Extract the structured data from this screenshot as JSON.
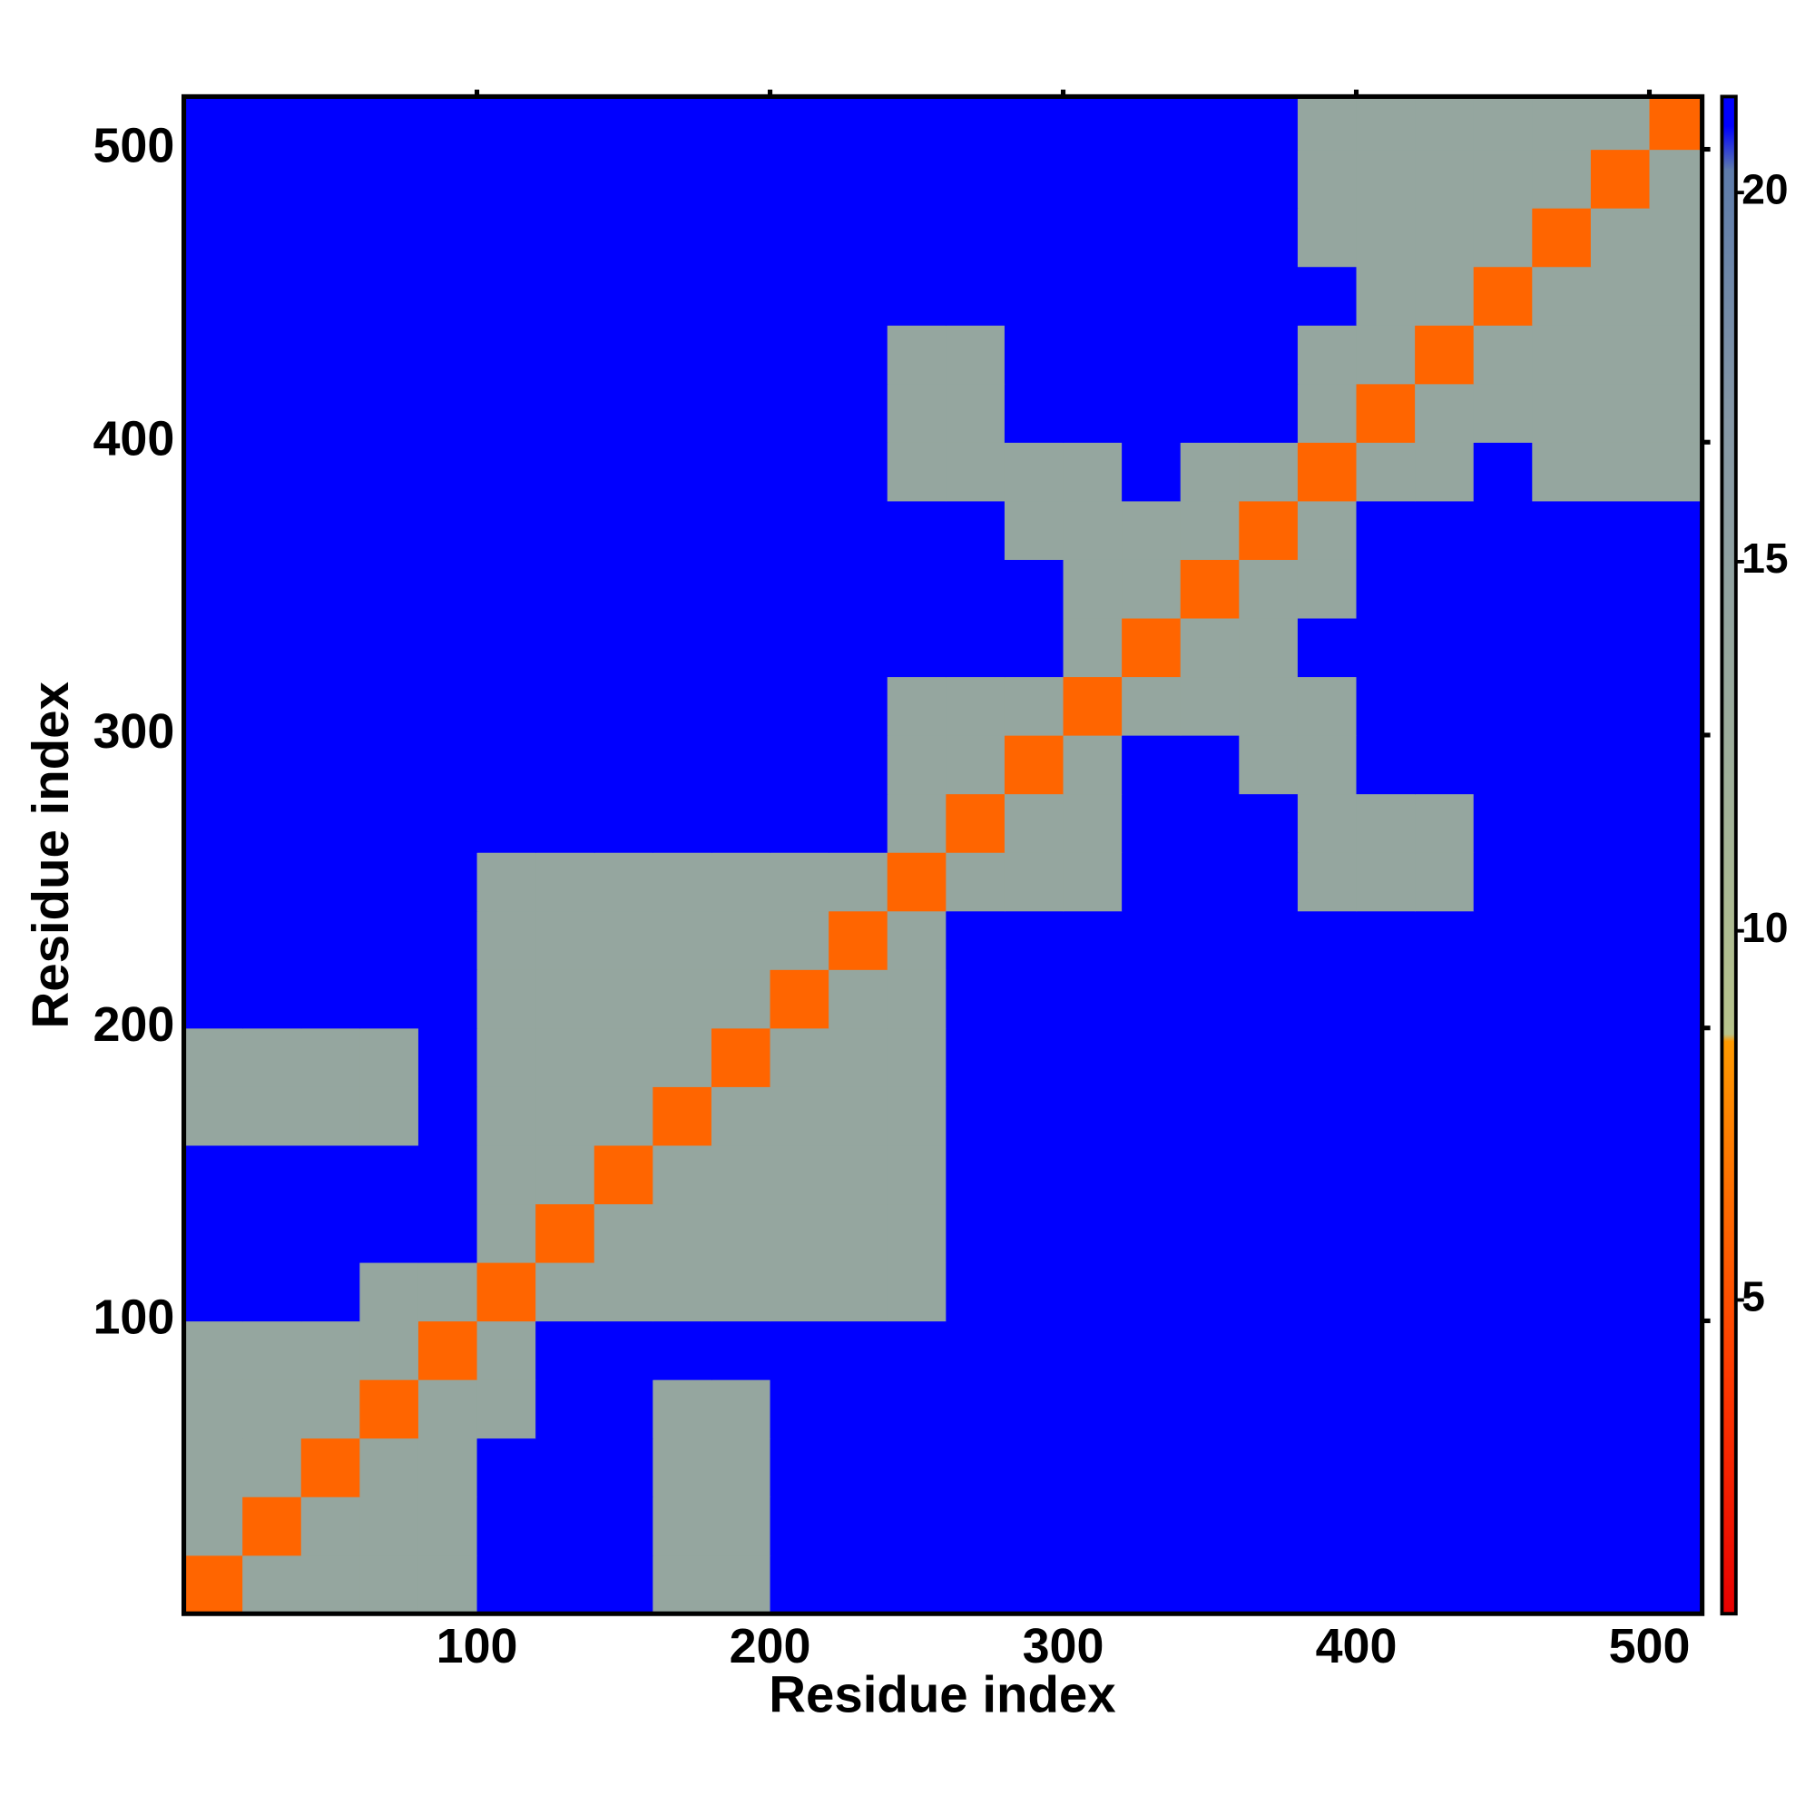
{
  "chart_data": {
    "type": "heatmap",
    "xlabel": "Residue index",
    "ylabel": "Residue index",
    "x_bins": [
      0,
      20,
      40,
      60,
      80,
      100,
      120,
      140,
      160,
      180,
      200,
      220,
      240,
      260,
      280,
      300,
      320,
      340,
      360,
      380,
      400,
      420,
      440,
      460,
      480,
      500,
      518
    ],
    "y_bins": [
      0,
      20,
      40,
      60,
      80,
      100,
      120,
      140,
      160,
      180,
      200,
      220,
      240,
      260,
      280,
      300,
      320,
      340,
      360,
      380,
      400,
      420,
      440,
      460,
      480,
      500,
      518
    ],
    "values": [
      [
        6,
        14,
        14,
        14,
        14,
        21,
        21,
        21,
        14,
        14,
        21,
        21,
        21,
        21,
        21,
        21,
        21,
        21,
        21,
        21,
        21,
        21,
        21,
        21,
        21,
        21
      ],
      [
        14,
        6,
        14,
        14,
        14,
        21,
        21,
        21,
        14,
        14,
        21,
        21,
        21,
        21,
        21,
        21,
        21,
        21,
        21,
        21,
        21,
        21,
        21,
        21,
        21,
        21
      ],
      [
        14,
        14,
        6,
        14,
        14,
        21,
        21,
        21,
        14,
        14,
        21,
        21,
        21,
        21,
        21,
        21,
        21,
        21,
        21,
        21,
        21,
        21,
        21,
        21,
        21,
        21
      ],
      [
        14,
        14,
        14,
        6,
        14,
        14,
        21,
        21,
        14,
        14,
        21,
        21,
        21,
        21,
        21,
        21,
        21,
        21,
        21,
        21,
        21,
        21,
        21,
        21,
        21,
        21
      ],
      [
        14,
        14,
        14,
        14,
        6,
        14,
        21,
        21,
        21,
        21,
        21,
        21,
        21,
        21,
        21,
        21,
        21,
        21,
        21,
        21,
        21,
        21,
        21,
        21,
        21,
        21
      ],
      [
        21,
        21,
        21,
        14,
        14,
        6,
        14,
        14,
        14,
        14,
        14,
        14,
        14,
        21,
        21,
        21,
        21,
        21,
        21,
        21,
        21,
        21,
        21,
        21,
        21,
        21
      ],
      [
        21,
        21,
        21,
        21,
        21,
        14,
        6,
        14,
        14,
        14,
        14,
        14,
        14,
        21,
        21,
        21,
        21,
        21,
        21,
        21,
        21,
        21,
        21,
        21,
        21,
        21
      ],
      [
        21,
        21,
        21,
        21,
        21,
        14,
        14,
        6,
        14,
        14,
        14,
        14,
        14,
        21,
        21,
        21,
        21,
        21,
        21,
        21,
        21,
        21,
        21,
        21,
        21,
        21
      ],
      [
        14,
        14,
        14,
        14,
        21,
        14,
        14,
        14,
        6,
        14,
        14,
        14,
        14,
        21,
        21,
        21,
        21,
        21,
        21,
        21,
        21,
        21,
        21,
        21,
        21,
        21
      ],
      [
        14,
        14,
        14,
        14,
        21,
        14,
        14,
        14,
        14,
        6,
        14,
        14,
        14,
        21,
        21,
        21,
        21,
        21,
        21,
        21,
        21,
        21,
        21,
        21,
        21,
        21
      ],
      [
        21,
        21,
        21,
        21,
        21,
        14,
        14,
        14,
        14,
        14,
        6,
        14,
        14,
        21,
        21,
        21,
        21,
        21,
        21,
        21,
        21,
        21,
        21,
        21,
        21,
        21
      ],
      [
        21,
        21,
        21,
        21,
        21,
        14,
        14,
        14,
        14,
        14,
        14,
        6,
        14,
        21,
        21,
        21,
        21,
        21,
        21,
        21,
        21,
        21,
        21,
        21,
        21,
        21
      ],
      [
        21,
        21,
        21,
        21,
        21,
        14,
        14,
        14,
        14,
        14,
        14,
        14,
        6,
        14,
        14,
        14,
        21,
        21,
        21,
        14,
        14,
        14,
        21,
        21,
        21,
        21
      ],
      [
        21,
        21,
        21,
        21,
        21,
        21,
        21,
        21,
        21,
        21,
        21,
        21,
        14,
        6,
        14,
        14,
        21,
        21,
        21,
        14,
        14,
        14,
        21,
        21,
        21,
        21
      ],
      [
        21,
        21,
        21,
        21,
        21,
        21,
        21,
        21,
        21,
        21,
        21,
        21,
        14,
        14,
        6,
        14,
        21,
        21,
        14,
        14,
        21,
        21,
        21,
        21,
        21,
        21
      ],
      [
        21,
        21,
        21,
        21,
        21,
        21,
        21,
        21,
        21,
        21,
        21,
        21,
        14,
        14,
        14,
        6,
        14,
        14,
        14,
        14,
        21,
        21,
        21,
        21,
        21,
        21
      ],
      [
        21,
        21,
        21,
        21,
        21,
        21,
        21,
        21,
        21,
        21,
        21,
        21,
        21,
        21,
        21,
        14,
        6,
        14,
        14,
        21,
        21,
        21,
        21,
        21,
        21,
        21
      ],
      [
        21,
        21,
        21,
        21,
        21,
        21,
        21,
        21,
        21,
        21,
        21,
        21,
        21,
        21,
        21,
        14,
        14,
        6,
        14,
        14,
        21,
        21,
        21,
        21,
        21,
        21
      ],
      [
        21,
        21,
        21,
        21,
        21,
        21,
        21,
        21,
        21,
        21,
        21,
        21,
        21,
        21,
        14,
        14,
        14,
        14,
        6,
        14,
        21,
        21,
        21,
        21,
        21,
        21
      ],
      [
        21,
        21,
        21,
        21,
        21,
        21,
        21,
        21,
        21,
        21,
        21,
        21,
        14,
        14,
        14,
        14,
        21,
        14,
        14,
        6,
        14,
        14,
        21,
        14,
        14,
        14
      ],
      [
        21,
        21,
        21,
        21,
        21,
        21,
        21,
        21,
        21,
        21,
        21,
        21,
        14,
        14,
        21,
        21,
        21,
        21,
        21,
        14,
        6,
        14,
        14,
        14,
        14,
        14
      ],
      [
        21,
        21,
        21,
        21,
        21,
        21,
        21,
        21,
        21,
        21,
        21,
        21,
        14,
        14,
        21,
        21,
        21,
        21,
        21,
        14,
        14,
        6,
        14,
        14,
        14,
        14
      ],
      [
        21,
        21,
        21,
        21,
        21,
        21,
        21,
        21,
        21,
        21,
        21,
        21,
        21,
        21,
        21,
        21,
        21,
        21,
        21,
        21,
        14,
        14,
        6,
        14,
        14,
        14
      ],
      [
        21,
        21,
        21,
        21,
        21,
        21,
        21,
        21,
        21,
        21,
        21,
        21,
        21,
        21,
        21,
        21,
        21,
        21,
        21,
        14,
        14,
        14,
        14,
        6,
        14,
        14
      ],
      [
        21,
        21,
        21,
        21,
        21,
        21,
        21,
        21,
        21,
        21,
        21,
        21,
        21,
        21,
        21,
        21,
        21,
        21,
        21,
        14,
        14,
        14,
        14,
        14,
        6,
        14
      ],
      [
        21,
        21,
        21,
        21,
        21,
        21,
        21,
        21,
        21,
        21,
        21,
        21,
        21,
        21,
        21,
        21,
        21,
        21,
        21,
        14,
        14,
        14,
        14,
        14,
        14,
        6
      ]
    ],
    "xlim": [
      0,
      518
    ],
    "ylim": [
      0,
      518
    ],
    "xticks": [
      100,
      200,
      300,
      400,
      500
    ],
    "yticks": [
      100,
      200,
      300,
      400,
      500
    ],
    "colorbar": {
      "lim": [
        0.75,
        21.3
      ],
      "ticks": [
        5,
        10,
        15,
        20
      ]
    },
    "colorscale": [
      [
        0.75,
        "#e80000"
      ],
      [
        4,
        "#ff3a00"
      ],
      [
        8.5,
        "#ff9a00"
      ],
      [
        8.6,
        "#b8c48c"
      ],
      [
        12,
        "#a0b09a"
      ],
      [
        17,
        "#8597a6"
      ],
      [
        20.3,
        "#5e7cab"
      ],
      [
        20.9,
        "#0000ff"
      ],
      [
        21.3,
        "#0000ff"
      ]
    ]
  }
}
